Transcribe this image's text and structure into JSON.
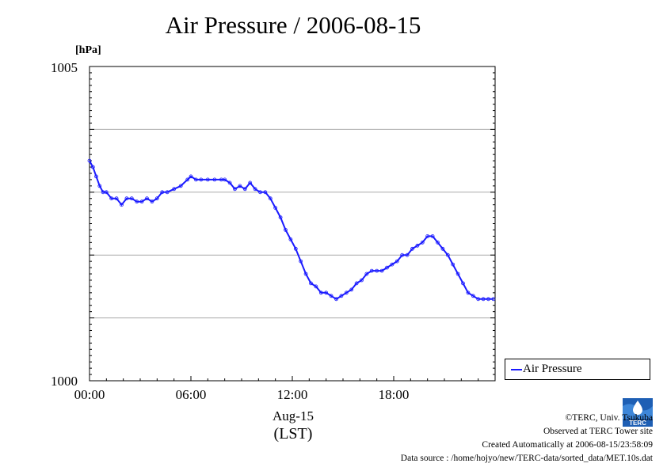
{
  "title": "Air Pressure / 2006-08-15",
  "chart_data": {
    "type": "line",
    "title": "Air Pressure / 2006-08-15",
    "ylabel": "[hPa]",
    "xlabel": "Aug-15",
    "xlabel2": "(LST)",
    "ylim": [
      1000,
      1005
    ],
    "xlim_hours": [
      0,
      24
    ],
    "x_tick_labels": [
      "00:00",
      "06:00",
      "12:00",
      "18:00"
    ],
    "y_tick_labels": [
      "1000",
      "1005"
    ],
    "y_gridlines": [
      1001,
      1002,
      1003,
      1004
    ],
    "legend": "right-bottom",
    "series": [
      {
        "name": "Air Pressure",
        "color": "#1a1aff",
        "x_hours": [
          0.0,
          0.2,
          0.4,
          0.6,
          0.8,
          1.0,
          1.3,
          1.6,
          1.9,
          2.2,
          2.5,
          2.8,
          3.1,
          3.4,
          3.7,
          4.0,
          4.3,
          4.6,
          5.0,
          5.4,
          5.8,
          6.0,
          6.3,
          6.6,
          7.0,
          7.4,
          7.8,
          8.0,
          8.3,
          8.6,
          8.9,
          9.2,
          9.5,
          9.8,
          10.1,
          10.4,
          10.7,
          11.0,
          11.3,
          11.6,
          11.9,
          12.2,
          12.5,
          12.8,
          13.1,
          13.4,
          13.7,
          14.0,
          14.3,
          14.6,
          14.9,
          15.2,
          15.5,
          15.8,
          16.1,
          16.4,
          16.7,
          17.0,
          17.3,
          17.6,
          17.9,
          18.2,
          18.5,
          18.8,
          19.1,
          19.4,
          19.7,
          20.0,
          20.3,
          20.6,
          20.9,
          21.2,
          21.5,
          21.8,
          22.1,
          22.4,
          22.7,
          23.0,
          23.3,
          23.6,
          23.9
        ],
        "values": [
          1003.5,
          1003.4,
          1003.25,
          1003.1,
          1003.0,
          1003.0,
          1002.9,
          1002.9,
          1002.8,
          1002.9,
          1002.9,
          1002.85,
          1002.85,
          1002.9,
          1002.85,
          1002.9,
          1003.0,
          1003.0,
          1003.05,
          1003.1,
          1003.2,
          1003.25,
          1003.2,
          1003.2,
          1003.2,
          1003.2,
          1003.2,
          1003.2,
          1003.15,
          1003.05,
          1003.1,
          1003.05,
          1003.15,
          1003.05,
          1003.0,
          1003.0,
          1002.9,
          1002.75,
          1002.6,
          1002.4,
          1002.25,
          1002.1,
          1001.9,
          1001.7,
          1001.55,
          1001.5,
          1001.4,
          1001.4,
          1001.35,
          1001.3,
          1001.35,
          1001.4,
          1001.45,
          1001.55,
          1001.6,
          1001.7,
          1001.75,
          1001.75,
          1001.75,
          1001.8,
          1001.85,
          1001.9,
          1002.0,
          1002.0,
          1002.1,
          1002.15,
          1002.2,
          1002.3,
          1002.3,
          1002.2,
          1002.1,
          1002.0,
          1001.85,
          1001.7,
          1001.55,
          1001.4,
          1001.35,
          1001.3,
          1001.3,
          1001.3,
          1001.3
        ]
      }
    ]
  },
  "unit_label": "[hPa]",
  "y_max_label": "1005",
  "y_min_label": "1000",
  "x_ticks": [
    "00:00",
    "06:00",
    "12:00",
    "18:00"
  ],
  "x_date_label": "Aug-15",
  "x_tz_label": "(LST)",
  "legend": {
    "label": "Air Pressure"
  },
  "credits": {
    "copyright": "©TERC, Univ. Tsukuba",
    "site": "Observed at TERC Tower site",
    "created": "Created Automatically at 2006-08-15/23:58:09",
    "source": "Data source : /home/hojyo/new/TERC-data/sorted_data/MET.10s.dat"
  },
  "logo_text": "TERC"
}
